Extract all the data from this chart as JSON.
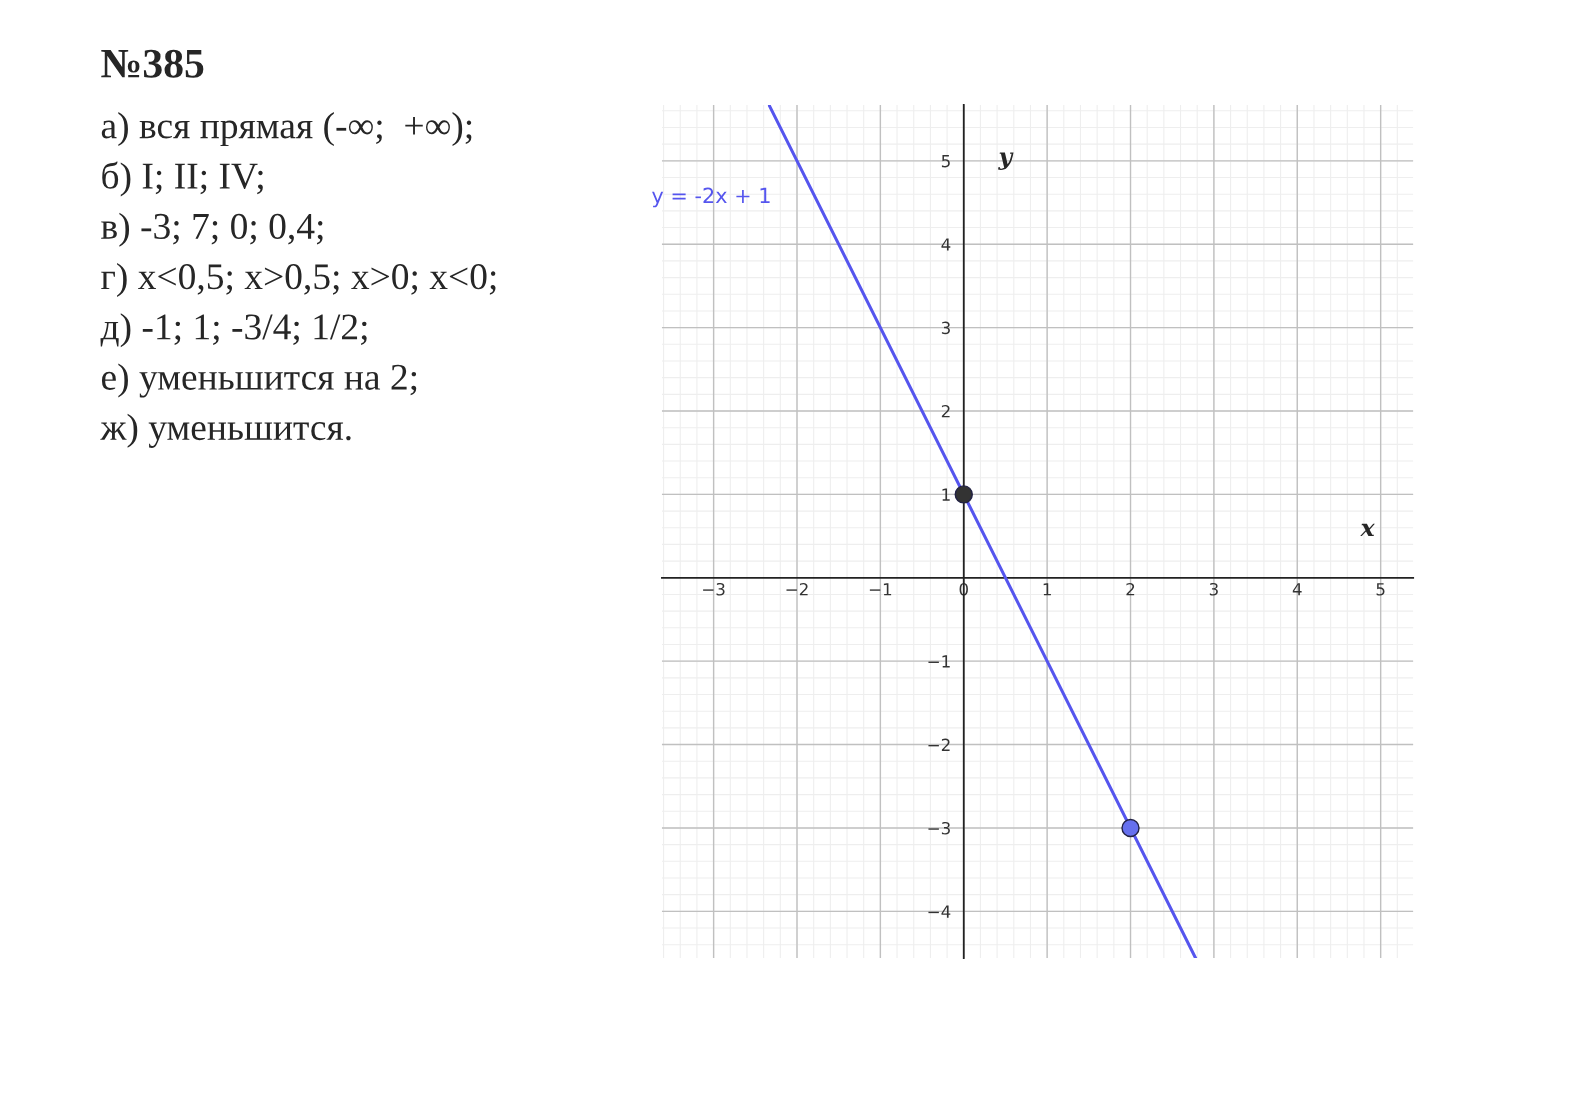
{
  "chart_data": {
    "type": "line",
    "title": "№385",
    "annotations": [
      "а) вся прямая (-∞;  +∞);",
      "б) I; II; IV;",
      "в) -3; 7; 0; 0,4;",
      "г) x<0,5; x>0,5; x>0; x<0;",
      "д) -1; 1; -3/4; 1/2;",
      "е) уменьшится на 2;",
      "ж) уменьшится."
    ],
    "xlabel": "x",
    "ylabel": "y",
    "xlim": [
      -3.62,
      5.39
    ],
    "ylim": [
      -4.56,
      5.67
    ],
    "xticks": [
      -3,
      -2,
      -1,
      0,
      1,
      2,
      3,
      4,
      5
    ],
    "yticks": [
      -4,
      -3,
      -2,
      -1,
      1,
      2,
      3,
      4,
      5
    ],
    "grid": true,
    "legend": false,
    "series": [
      {
        "name": "y = -2x + 1",
        "color": "#5555ee",
        "x": [
          -2.33,
          2.78
        ],
        "values": [
          5.66,
          -4.56
        ]
      },
      {
        "type": "scatter",
        "marker": "circle",
        "x": [
          0,
          2
        ],
        "values": [
          1,
          -3
        ],
        "colors": [
          "#333333",
          "#6670ee"
        ]
      }
    ]
  }
}
